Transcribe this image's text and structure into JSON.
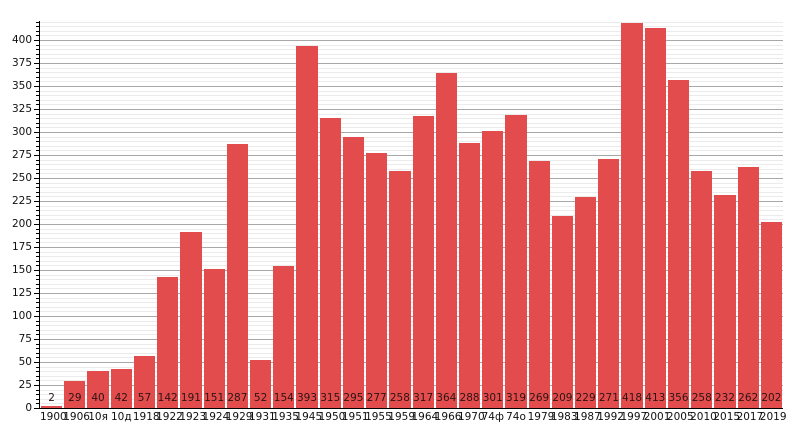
{
  "chart_data": {
    "type": "bar",
    "title": "",
    "xlabel": "",
    "ylabel": "",
    "categories": [
      "1900",
      "1906",
      "10я",
      "10д",
      "1918",
      "1922",
      "1923",
      "1924",
      "1929",
      "1931",
      "1935",
      "1945",
      "1950",
      "1951",
      "1955",
      "1959",
      "1964",
      "1966",
      "1970",
      "74ф",
      "74о",
      "1979",
      "1983",
      "1987",
      "1992",
      "1997",
      "2001",
      "2005",
      "2010",
      "2015",
      "2017",
      "2019"
    ],
    "values": [
      2,
      29,
      40,
      42,
      57,
      142,
      191,
      151,
      287,
      52,
      154,
      393,
      315,
      295,
      277,
      258,
      317,
      364,
      288,
      301,
      319,
      269,
      209,
      229,
      271,
      418,
      413,
      356,
      258,
      232,
      262,
      202
    ],
    "ylim": [
      0,
      420
    ],
    "y_major_step": 25,
    "y_minor_step": 5,
    "y_tick_labels": [
      "0",
      "25",
      "50",
      "75",
      "100",
      "125",
      "150",
      "175",
      "200",
      "225",
      "250",
      "275",
      "300",
      "325",
      "350",
      "375",
      "400"
    ],
    "grid": true,
    "legend_position": "none",
    "value_labels_shown": true,
    "colors": {
      "bar": "#e34c4c",
      "grid_major": "#a8a8a8",
      "grid_minor": "#ebebeb",
      "axis": "#000000",
      "tick_label": "#111111",
      "value_label": "#2b1414"
    }
  }
}
